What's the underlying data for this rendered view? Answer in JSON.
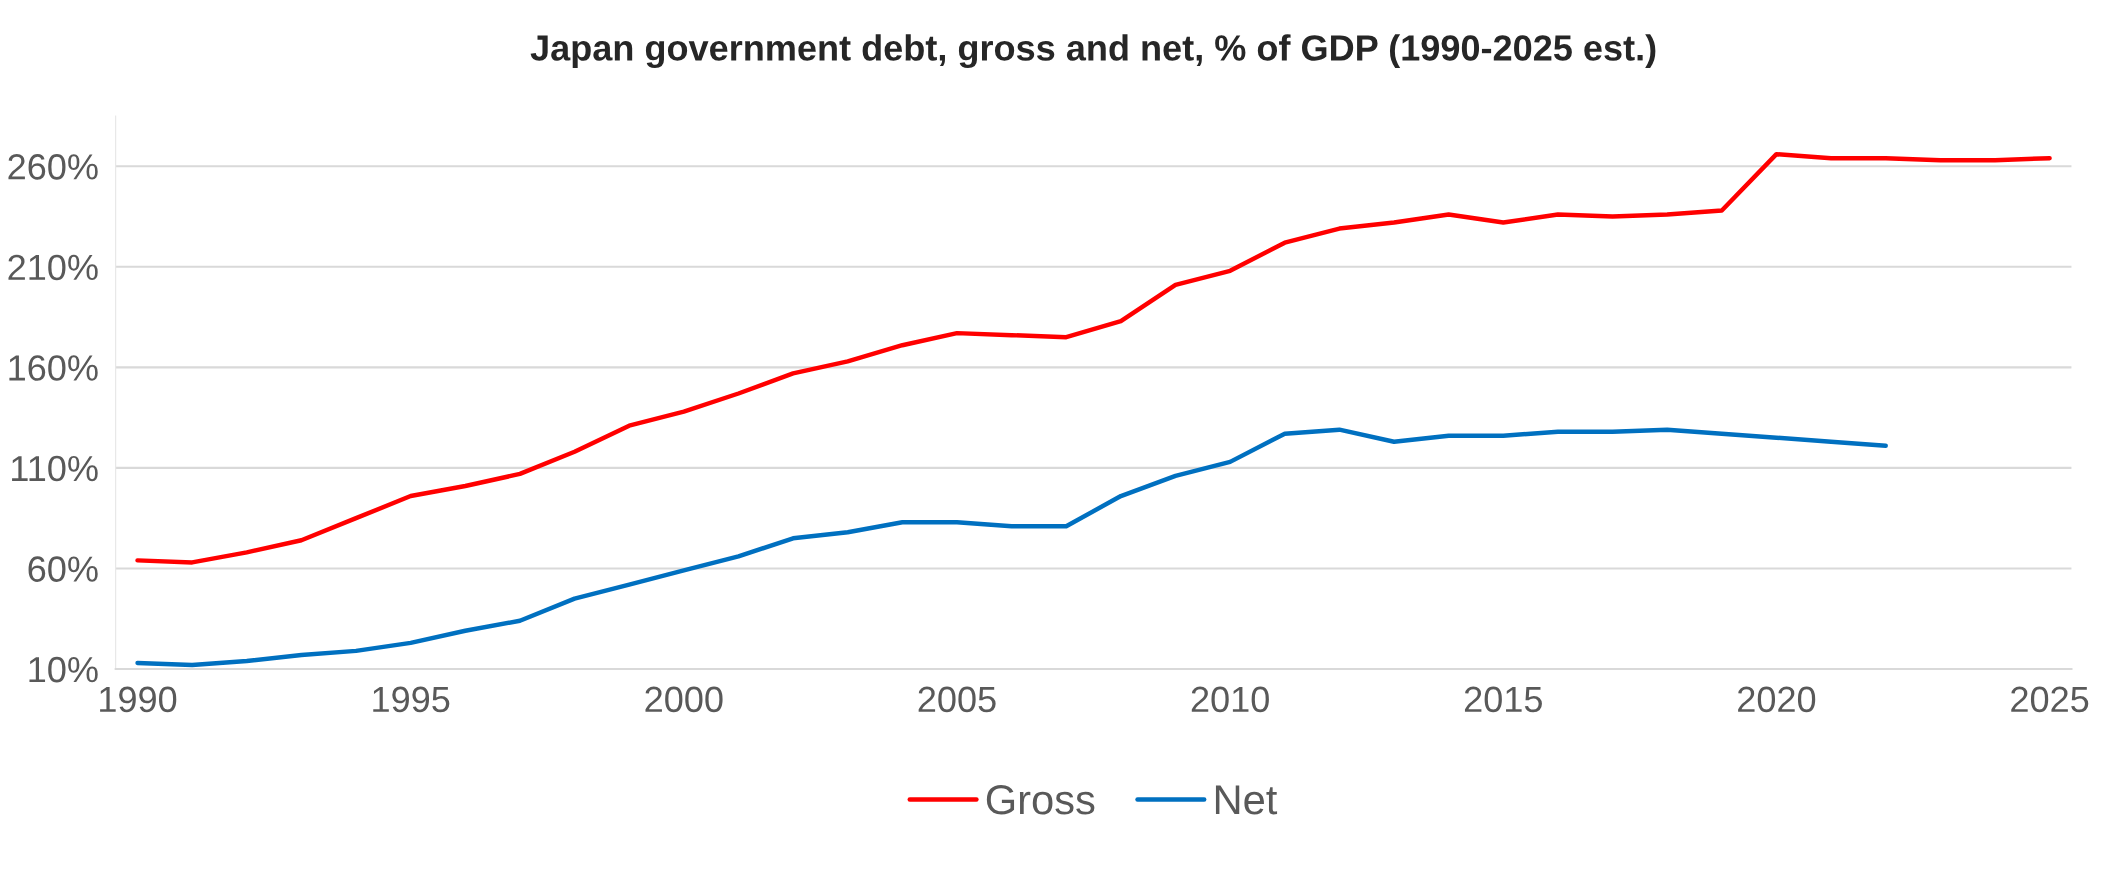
{
  "chart_data": {
    "type": "line",
    "title": "Japan government debt, gross and net, % of GDP (1990-2025 est.)",
    "x": [
      1990,
      1991,
      1992,
      1993,
      1994,
      1995,
      1996,
      1997,
      1998,
      1999,
      2000,
      2001,
      2002,
      2003,
      2004,
      2005,
      2006,
      2007,
      2008,
      2009,
      2010,
      2011,
      2012,
      2013,
      2014,
      2015,
      2016,
      2017,
      2018,
      2019,
      2020,
      2021,
      2022,
      2023,
      2024,
      2025
    ],
    "series": [
      {
        "name": "Gross",
        "color": "#ff0000",
        "values": [
          64,
          63,
          68,
          74,
          85,
          96,
          101,
          107,
          118,
          131,
          138,
          147,
          157,
          163,
          171,
          177,
          176,
          175,
          183,
          201,
          208,
          222,
          229,
          232,
          236,
          232,
          236,
          235,
          236,
          238,
          266,
          264,
          264,
          263,
          263,
          264
        ]
      },
      {
        "name": "Net",
        "color": "#0070c0",
        "values": [
          13,
          12,
          14,
          17,
          19,
          23,
          29,
          34,
          45,
          52,
          59,
          66,
          75,
          78,
          83,
          83,
          81,
          81,
          96,
          106,
          113,
          127,
          129,
          123,
          126,
          126,
          128,
          128,
          129,
          127,
          125,
          123,
          121,
          null,
          null,
          null
        ]
      }
    ],
    "xlim": [
      1989.6,
      2025.4
    ],
    "xticks": [
      1990,
      1995,
      2000,
      2005,
      2010,
      2015,
      2020,
      2025
    ],
    "ylim": [
      10,
      285
    ],
    "yticks": [
      {
        "value": 10,
        "label": "10%"
      },
      {
        "value": 60,
        "label": "60%"
      },
      {
        "value": 110,
        "label": "110%"
      },
      {
        "value": 160,
        "label": "160%"
      },
      {
        "value": 210,
        "label": "210%"
      },
      {
        "value": 260,
        "label": "260%"
      }
    ],
    "grid": "y",
    "legend": "bottom",
    "marker": "none",
    "line_style": "solid"
  }
}
